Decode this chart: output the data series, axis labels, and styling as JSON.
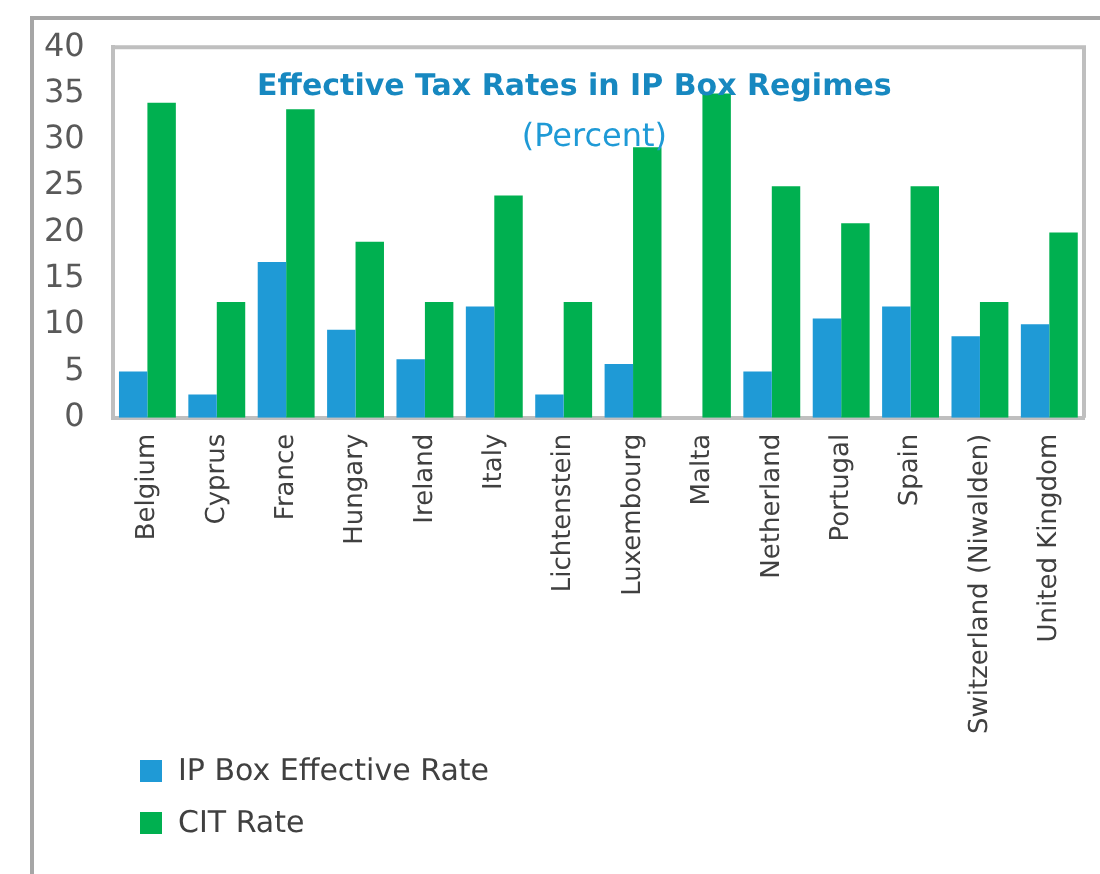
{
  "chart_data": {
    "type": "bar",
    "title": "Effective Tax Rates in IP Box Regimes",
    "subtitle": "(Percent)",
    "categories": [
      "Belgium",
      "Cyprus",
      "France",
      "Hungary",
      "Ireland",
      "Italy",
      "Lichtenstein",
      "Luxembourg",
      "Malta",
      "Netherland",
      "Portugal",
      "Spain",
      "Switzerland (Niwalden)",
      "United Kingdom"
    ],
    "series": [
      {
        "name": "IP Box Effective Rate",
        "color": "#1f9ad6",
        "values": [
          5,
          2.5,
          16.8,
          9.5,
          6.3,
          12,
          2.5,
          5.8,
          0,
          5,
          10.7,
          12,
          8.8,
          10.1
        ]
      },
      {
        "name": "CIT Rate",
        "color": "#00b050",
        "values": [
          34,
          12.5,
          33.3,
          19,
          12.5,
          24,
          12.5,
          29.2,
          35,
          25,
          21,
          25,
          12.5,
          20
        ]
      }
    ],
    "ylim": [
      0,
      40
    ],
    "yticks": [
      0,
      5,
      10,
      15,
      20,
      25,
      30,
      35,
      40
    ],
    "grid": false,
    "legend": "bottom left"
  }
}
